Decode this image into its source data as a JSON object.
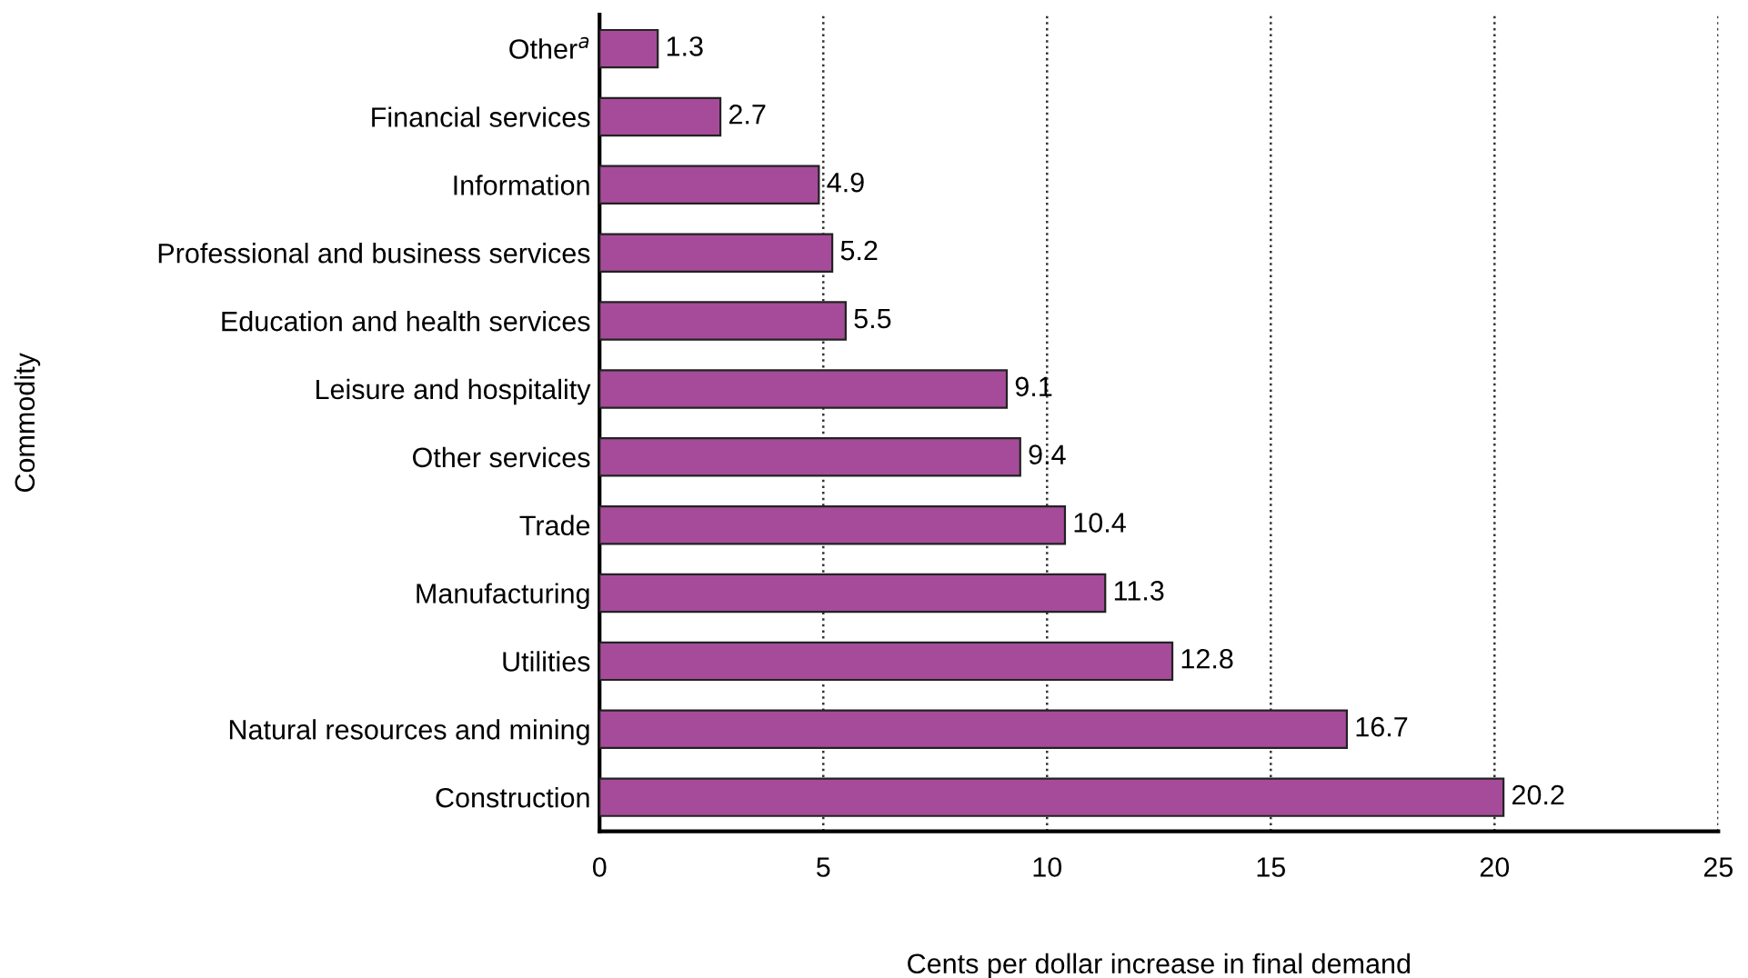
{
  "chart_data": {
    "type": "bar",
    "orientation": "horizontal",
    "xlabel": "Cents per dollar increase in final demand",
    "ylabel": "Commodity",
    "categories": [
      "Other$^{a}$",
      "Financial services",
      "Information",
      "Professional and business services",
      "Education and health services",
      "Leisure and hospitality",
      "Other services",
      "Trade",
      "Manufacturing",
      "Utilities",
      "Natural resources and mining",
      "Construction"
    ],
    "values": [
      1.3,
      2.7,
      4.9,
      5.2,
      5.5,
      9.1,
      9.4,
      10.4,
      11.3,
      12.8,
      16.7,
      20.2
    ],
    "color": "#a64b9a",
    "xlim": [
      0,
      25
    ],
    "xticks": [
      0,
      5,
      10,
      15,
      20,
      25
    ],
    "grid": "x",
    "data_labels": true
  }
}
